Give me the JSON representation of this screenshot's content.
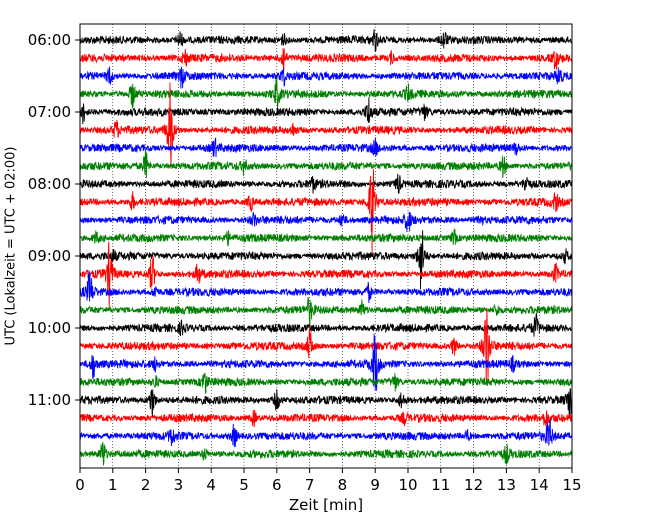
{
  "chart_data": {
    "type": "line",
    "title": "",
    "xlabel": "Zeit  [min]",
    "ylabel": "UTC (Lokalzeit = UTC + 02:00)",
    "xlim": [
      0,
      15
    ],
    "x_ticks": [
      0,
      1,
      2,
      3,
      4,
      5,
      6,
      7,
      8,
      9,
      10,
      11,
      12,
      13,
      14,
      15
    ],
    "grid": "vertical dotted",
    "trace_interval_minutes": 15,
    "start_time": "06:00",
    "y_tick_labels": [
      "06:00",
      "07:00",
      "08:00",
      "09:00",
      "10:00",
      "11:00"
    ],
    "colors": [
      "#000000",
      "#ff0000",
      "#0000ff",
      "#008000"
    ],
    "traces": [
      {
        "start": "06:00",
        "color": "#000000",
        "events": [
          [
            3.05,
            0.3
          ],
          [
            6.2,
            0.2
          ],
          [
            9.0,
            0.35
          ],
          [
            11.1,
            0.3
          ]
        ]
      },
      {
        "start": "06:15",
        "color": "#ff0000",
        "events": [
          [
            3.2,
            0.3
          ],
          [
            6.2,
            0.5
          ],
          [
            9.5,
            0.2
          ],
          [
            14.5,
            0.35
          ]
        ]
      },
      {
        "start": "06:30",
        "color": "#0000ff",
        "events": [
          [
            0.9,
            0.3
          ],
          [
            3.1,
            0.35
          ],
          [
            6.2,
            0.3
          ],
          [
            14.6,
            0.3
          ]
        ]
      },
      {
        "start": "06:45",
        "color": "#008000",
        "events": [
          [
            1.6,
            0.45
          ],
          [
            6.0,
            0.5
          ],
          [
            10.0,
            0.25
          ]
        ]
      },
      {
        "start": "07:00",
        "color": "#000000",
        "events": [
          [
            0.1,
            0.35
          ],
          [
            8.8,
            0.5
          ],
          [
            10.5,
            0.25
          ]
        ]
      },
      {
        "start": "07:15",
        "color": "#ff0000",
        "events": [
          [
            1.1,
            0.3
          ],
          [
            2.75,
            1.6
          ],
          [
            6.5,
            0.2
          ]
        ]
      },
      {
        "start": "07:30",
        "color": "#0000ff",
        "events": [
          [
            4.1,
            0.3
          ],
          [
            9.0,
            0.25
          ],
          [
            13.3,
            0.2
          ]
        ]
      },
      {
        "start": "07:45",
        "color": "#008000",
        "events": [
          [
            2.0,
            0.5
          ],
          [
            5.0,
            0.25
          ],
          [
            12.9,
            0.35
          ]
        ]
      },
      {
        "start": "08:00",
        "color": "#000000",
        "events": [
          [
            7.1,
            0.2
          ],
          [
            9.7,
            0.35
          ],
          [
            13.6,
            0.3
          ]
        ]
      },
      {
        "start": "08:15",
        "color": "#ff0000",
        "events": [
          [
            1.6,
            0.3
          ],
          [
            5.2,
            0.3
          ],
          [
            8.9,
            1.7
          ],
          [
            14.5,
            0.3
          ]
        ]
      },
      {
        "start": "08:30",
        "color": "#0000ff",
        "events": [
          [
            5.3,
            0.2
          ],
          [
            8.0,
            0.25
          ],
          [
            10.0,
            0.45
          ],
          [
            12.2,
            0.2
          ]
        ]
      },
      {
        "start": "08:45",
        "color": "#008000",
        "events": [
          [
            0.5,
            0.2
          ],
          [
            4.5,
            0.2
          ],
          [
            11.4,
            0.25
          ]
        ]
      },
      {
        "start": "09:00",
        "color": "#000000",
        "events": [
          [
            1.0,
            0.2
          ],
          [
            10.4,
            1.3
          ],
          [
            14.8,
            0.2
          ]
        ]
      },
      {
        "start": "09:15",
        "color": "#ff0000",
        "events": [
          [
            0.9,
            1.1
          ],
          [
            2.2,
            0.7
          ],
          [
            3.6,
            0.35
          ],
          [
            14.5,
            0.3
          ]
        ]
      },
      {
        "start": "09:30",
        "color": "#0000ff",
        "events": [
          [
            0.3,
            0.7
          ],
          [
            2.3,
            0.2
          ],
          [
            8.8,
            0.3
          ]
        ]
      },
      {
        "start": "09:45",
        "color": "#008000",
        "events": [
          [
            7.0,
            0.45
          ],
          [
            8.6,
            0.3
          ],
          [
            12.7,
            0.2
          ]
        ]
      },
      {
        "start": "10:00",
        "color": "#000000",
        "events": [
          [
            3.1,
            0.2
          ],
          [
            13.9,
            0.4
          ]
        ]
      },
      {
        "start": "10:15",
        "color": "#ff0000",
        "events": [
          [
            7.0,
            0.6
          ],
          [
            11.4,
            0.3
          ],
          [
            12.4,
            1.7
          ]
        ]
      },
      {
        "start": "10:30",
        "color": "#0000ff",
        "events": [
          [
            0.4,
            0.45
          ],
          [
            2.3,
            0.2
          ],
          [
            9.0,
            1.2
          ],
          [
            13.2,
            0.2
          ]
        ]
      },
      {
        "start": "10:45",
        "color": "#008000",
        "events": [
          [
            2.3,
            0.2
          ],
          [
            3.8,
            0.4
          ],
          [
            9.6,
            0.3
          ]
        ]
      },
      {
        "start": "11:00",
        "color": "#000000",
        "events": [
          [
            2.2,
            0.55
          ],
          [
            6.0,
            0.35
          ],
          [
            9.8,
            0.3
          ],
          [
            14.95,
            0.9
          ]
        ]
      },
      {
        "start": "11:15",
        "color": "#ff0000",
        "events": [
          [
            5.3,
            0.25
          ],
          [
            9.9,
            0.2
          ],
          [
            14.2,
            0.25
          ]
        ]
      },
      {
        "start": "11:30",
        "color": "#0000ff",
        "events": [
          [
            2.8,
            0.3
          ],
          [
            4.7,
            0.4
          ],
          [
            11.8,
            0.2
          ],
          [
            14.3,
            0.6
          ]
        ]
      },
      {
        "start": "11:45",
        "color": "#008000",
        "events": [
          [
            0.7,
            0.5
          ],
          [
            3.8,
            0.2
          ],
          [
            13.0,
            0.25
          ]
        ]
      }
    ]
  }
}
